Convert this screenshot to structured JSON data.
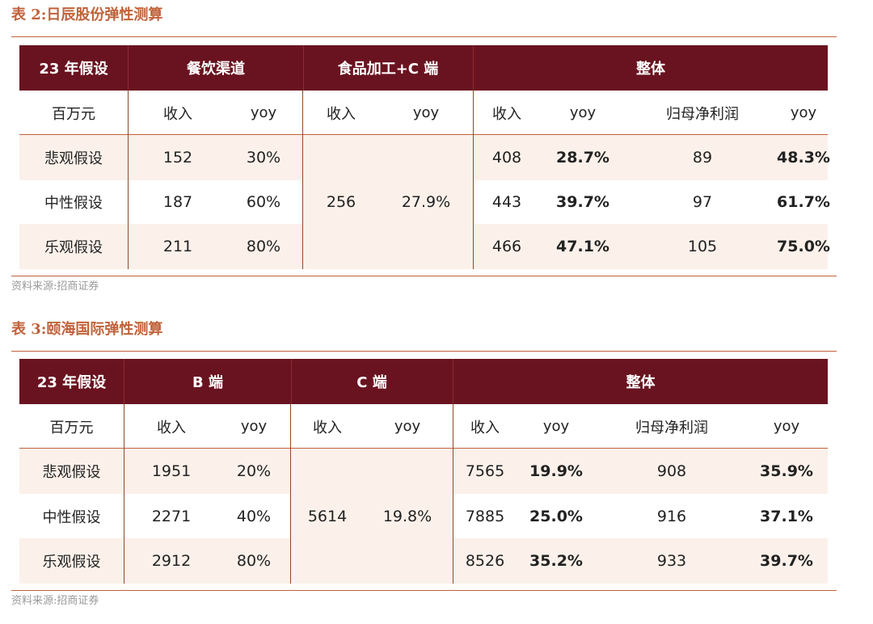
{
  "table2": {
    "title": "表 2:日辰股份弹性测算",
    "source": "资料来源:招商证券",
    "header": {
      "assumption": "23 年假设",
      "group1": "餐饮渠道",
      "group2": "食品加工+C 端",
      "group3": "整体"
    },
    "subheader": {
      "unit": "百万元",
      "g1_rev": "收入",
      "g1_yoy": "yoy",
      "g2_rev": "收入",
      "g2_yoy": "yoy",
      "g3_rev": "收入",
      "g3_yoy": "yoy",
      "g3_np": "归母净利润",
      "g3_np_yoy": "yoy"
    },
    "merged": {
      "rev": "256",
      "yoy": "27.9%"
    },
    "rows": [
      {
        "label": "悲观假设",
        "g1_rev": "152",
        "g1_yoy": "30%",
        "g3_rev": "408",
        "g3_yoy": "28.7%",
        "np": "89",
        "np_yoy": "48.3%"
      },
      {
        "label": "中性假设",
        "g1_rev": "187",
        "g1_yoy": "60%",
        "g3_rev": "443",
        "g3_yoy": "39.7%",
        "np": "97",
        "np_yoy": "61.7%"
      },
      {
        "label": "乐观假设",
        "g1_rev": "211",
        "g1_yoy": "80%",
        "g3_rev": "466",
        "g3_yoy": "47.1%",
        "np": "105",
        "np_yoy": "75.0%"
      }
    ]
  },
  "table3": {
    "title": "表 3:颐海国际弹性测算",
    "source": "资料来源:招商证券",
    "header": {
      "assumption": "23 年假设",
      "group1": "B 端",
      "group2": "C 端",
      "group3": "整体"
    },
    "subheader": {
      "unit": "百万元",
      "g1_rev": "收入",
      "g1_yoy": "yoy",
      "g2_rev": "收入",
      "g2_yoy": "yoy",
      "g3_rev": "收入",
      "g3_yoy": "yoy",
      "g3_np": "归母净利润",
      "g3_np_yoy": "yoy"
    },
    "merged": {
      "rev": "5614",
      "yoy": "19.8%"
    },
    "rows": [
      {
        "label": "悲观假设",
        "g1_rev": "1951",
        "g1_yoy": "20%",
        "g3_rev": "7565",
        "g3_yoy": "19.9%",
        "np": "908",
        "np_yoy": "35.9%"
      },
      {
        "label": "中性假设",
        "g1_rev": "2271",
        "g1_yoy": "40%",
        "g3_rev": "7885",
        "g3_yoy": "25.0%",
        "np": "916",
        "np_yoy": "37.1%"
      },
      {
        "label": "乐观假设",
        "g1_rev": "2912",
        "g1_yoy": "80%",
        "g3_rev": "8526",
        "g3_yoy": "35.2%",
        "np": "933",
        "np_yoy": "39.7%"
      }
    ]
  },
  "colors": {
    "header_bg": "#6a1320",
    "title": "#c0623a",
    "stripe": "#fbf1ea",
    "source": "#9a9a9a"
  }
}
